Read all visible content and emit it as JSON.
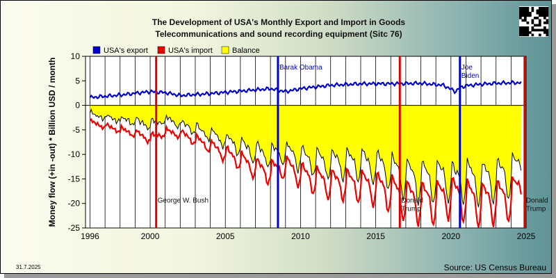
{
  "chart_data": {
    "type": "line",
    "title": "The Development of USA's Monthly Export and Import in Goods",
    "subtitle": "Telecommunications and sound recording equipment (Sitc 76)",
    "ylabel": "Money flow (+in -out) * Billion USD / month",
    "xlabel": "",
    "xlim": [
      1995.7,
      2025.0
    ],
    "ylim": [
      -25,
      10
    ],
    "x_ticks": [
      1996,
      2000,
      2005,
      2010,
      2015,
      2020,
      2025
    ],
    "y_ticks": [
      10,
      5,
      0,
      -5,
      -10,
      -15,
      -20,
      -25
    ],
    "legend_position": "top-left",
    "series": [
      {
        "name": "USA's export",
        "color": "#0000cc",
        "x": [
          1996,
          1998,
          2000,
          2001,
          2002,
          2004,
          2006,
          2008,
          2009,
          2010,
          2012,
          2014,
          2016,
          2018,
          2019.5,
          2020.3,
          2020.6,
          2021,
          2022,
          2023,
          2024,
          2024.7
        ],
        "values": [
          1.6,
          2.1,
          2.8,
          2.6,
          2.0,
          2.4,
          2.9,
          3.4,
          2.8,
          3.4,
          4.1,
          4.4,
          4.4,
          4.5,
          4.1,
          2.8,
          3.6,
          4.0,
          4.3,
          4.5,
          4.6,
          4.6
        ]
      },
      {
        "name": "USA's import",
        "color": "#ee0000",
        "x": [
          1996,
          1997,
          1998,
          1999,
          2000,
          2001,
          2002,
          2003,
          2004,
          2005,
          2006,
          2007,
          2008,
          2009,
          2010,
          2011,
          2012,
          2013,
          2014,
          2015,
          2016,
          2017,
          2018,
          2019,
          2020,
          2021,
          2022,
          2023,
          2024,
          2024.7
        ],
        "values": [
          -3.4,
          -4.2,
          -4.9,
          -5.6,
          -6.6,
          -5.3,
          -5.6,
          -6.8,
          -8.0,
          -9.4,
          -10.7,
          -12.1,
          -12.9,
          -11.6,
          -13.2,
          -14.2,
          -14.8,
          -14.8,
          -15.0,
          -15.4,
          -16.2,
          -17.4,
          -17.9,
          -17.6,
          -16.6,
          -17.2,
          -18.0,
          -17.5,
          -17.0,
          -15.0
        ]
      },
      {
        "name": "Balance",
        "color": "#ffff00",
        "x": [
          1996,
          1997,
          1998,
          1999,
          2000,
          2001,
          2002,
          2003,
          2004,
          2005,
          2006,
          2007,
          2008,
          2009,
          2010,
          2011,
          2012,
          2013,
          2014,
          2015,
          2016,
          2017,
          2018,
          2019,
          2020,
          2021,
          2022,
          2023,
          2024,
          2024.7
        ],
        "values": [
          -1.8,
          -2.0,
          -2.4,
          -2.9,
          -3.9,
          -2.7,
          -3.4,
          -4.4,
          -5.4,
          -6.6,
          -7.9,
          -9.2,
          -9.5,
          -8.6,
          -9.8,
          -10.4,
          -10.6,
          -10.6,
          -10.6,
          -11.0,
          -11.8,
          -13.0,
          -13.4,
          -13.5,
          -12.7,
          -13.0,
          -13.8,
          -13.0,
          -12.5,
          -10.4
        ]
      }
    ],
    "annotations": [
      {
        "x": 2000.4,
        "label": "George W. Bush",
        "color": "#dd0000",
        "label_y": -19.8
      },
      {
        "x": 2008.5,
        "label": "Barak Obama",
        "color": "#0000cc",
        "label_y": 7.3
      },
      {
        "x": 2016.6,
        "label": "Donald",
        "label2": "Trump",
        "color": "#dd0000",
        "label_y": -19.8
      },
      {
        "x": 2020.6,
        "label": "Joe",
        "label2": "Biden",
        "color": "#0000cc",
        "label_y": 7.3
      },
      {
        "x": 2024.9,
        "label": "Donald",
        "label2": "Trump",
        "color": "#dd0000",
        "label_y": -19.8
      }
    ],
    "grid": "vertical year lines"
  },
  "footer": {
    "date": "31.7.2025",
    "source": "Source: US Census Bureau"
  },
  "colors": {
    "plot_bg": "#ffffff",
    "balance_fill": "#ffff00"
  }
}
